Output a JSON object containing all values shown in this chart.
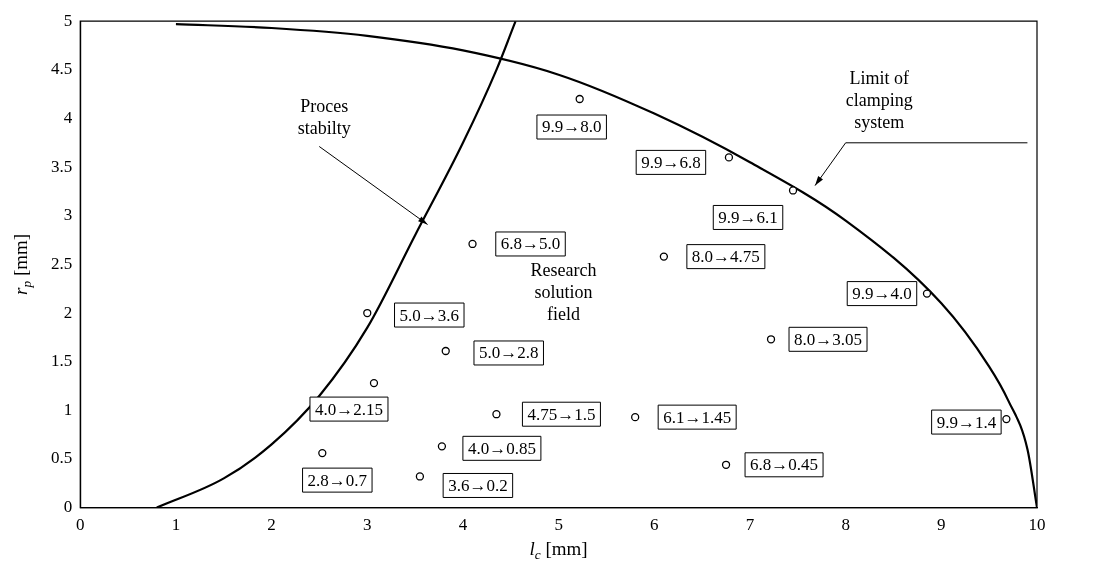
{
  "chart_data": {
    "type": "scatter",
    "xlabel": "l$_{c}$ [mm]",
    "ylabel": "r$_{p}$ [mm]",
    "xlim": [
      0,
      10
    ],
    "ylim": [
      0,
      5
    ],
    "xticks": [
      0,
      1,
      2,
      3,
      4,
      5,
      6,
      7,
      8,
      9,
      10
    ],
    "yticks": [
      0,
      0.5,
      1,
      1.5,
      2,
      2.5,
      3,
      3.5,
      4,
      4.5,
      5
    ],
    "grid": false,
    "legend": false,
    "marker": "circle",
    "series": [
      {
        "color": "#000000",
        "x": [
          5.22,
          6.78,
          7.45,
          4.1,
          6.1,
          8.85,
          3.0,
          7.22,
          3.82,
          3.07,
          4.35,
          5.8,
          9.68,
          3.78,
          2.53,
          6.75,
          3.55
        ],
        "values": [
          4.2,
          3.6,
          3.26,
          2.71,
          2.58,
          2.2,
          2.0,
          1.73,
          1.61,
          1.28,
          0.96,
          0.93,
          0.91,
          0.63,
          0.56,
          0.44,
          0.32
        ],
        "value_labels": [
          "9.9→8.0",
          "9.9→6.8",
          "9.9→6.1",
          "6.8→5.0",
          "8.0→4.75",
          "9.9→4.0",
          "5.0→3.6",
          "8.0→3.05",
          "5.0→2.8",
          "4.0→2.15",
          "4.75→1.5",
          "6.1→1.45",
          "9.9→1.4",
          "4.0→0.85",
          "2.8→0.7",
          "6.8→0.45",
          "3.6→0.2"
        ]
      },
      {
        "type": "line",
        "color": "#000000",
        "marker": "none",
        "x": [
          1,
          2,
          3,
          4,
          5,
          6,
          7,
          8,
          9,
          9.5,
          9.7,
          9.9,
          10
        ],
        "values": [
          4.97,
          4.93,
          4.85,
          4.7,
          4.45,
          4.05,
          3.55,
          2.95,
          2.1,
          1.45,
          1.1,
          0.6,
          0
        ]
      },
      {
        "type": "line",
        "color": "#000000",
        "marker": "none",
        "x": [
          0.8,
          1.5,
          2,
          2.5,
          3,
          3.5,
          4,
          4.35,
          4.55
        ],
        "values": [
          0,
          0.3,
          0.65,
          1.15,
          1.85,
          2.8,
          3.75,
          4.5,
          5
        ]
      }
    ],
    "annotations": [
      "Proces stabilty",
      "Limit of clamping system",
      "Research solution field"
    ]
  }
}
